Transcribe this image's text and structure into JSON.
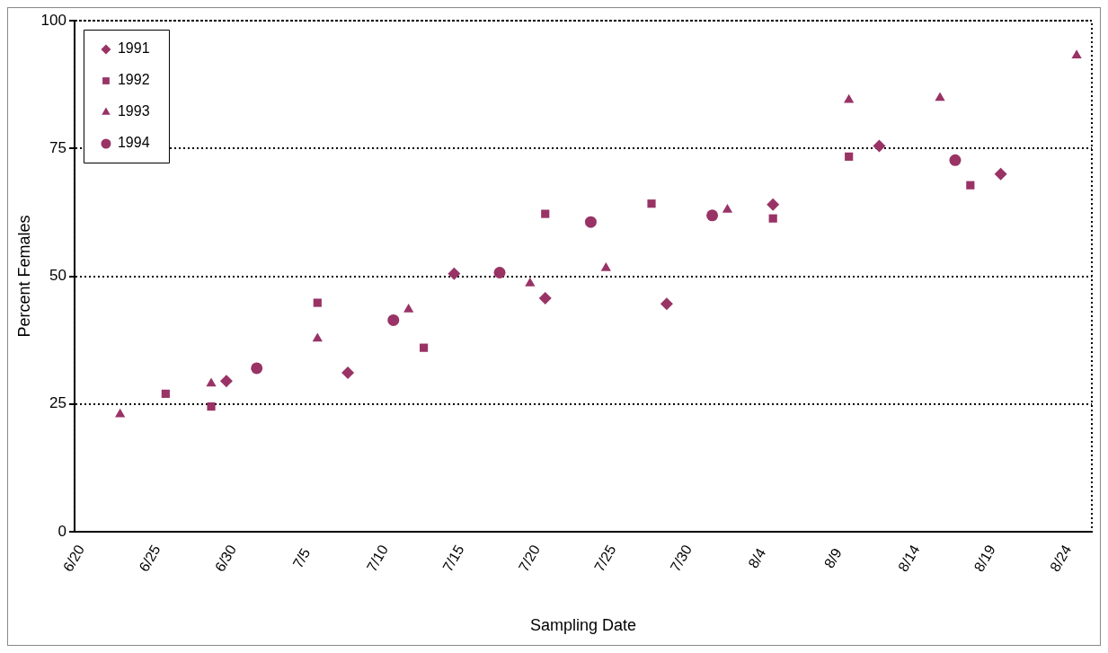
{
  "chart_data": {
    "type": "scatter",
    "xlabel": "Sampling Date",
    "ylabel": "Percent Females",
    "xlim": [
      "--06-20",
      "--08-26"
    ],
    "xticks": [
      {
        "value": "--06-20",
        "label": "6/20"
      },
      {
        "value": "--06-25",
        "label": "6/25"
      },
      {
        "value": "--06-30",
        "label": "6/30"
      },
      {
        "value": "--07-05",
        "label": "7/5"
      },
      {
        "value": "--07-10",
        "label": "7/10"
      },
      {
        "value": "--07-15",
        "label": "7/15"
      },
      {
        "value": "--07-20",
        "label": "7/20"
      },
      {
        "value": "--07-25",
        "label": "7/25"
      },
      {
        "value": "--07-30",
        "label": "7/30"
      },
      {
        "value": "--08-04",
        "label": "8/4"
      },
      {
        "value": "--08-09",
        "label": "8/9"
      },
      {
        "value": "--08-14",
        "label": "8/14"
      },
      {
        "value": "--08-19",
        "label": "8/19"
      },
      {
        "value": "--08-24",
        "label": "8/24"
      }
    ],
    "ylim": [
      0,
      100
    ],
    "yticks": [
      0,
      25,
      50,
      75,
      100
    ],
    "grid": "y",
    "legend": "top left",
    "series": [
      {
        "name": "1991",
        "color": "#993366",
        "marker": "diamond",
        "x": [
          "--06-30",
          "--07-08",
          "--07-15",
          "--07-21",
          "--07-29",
          "--08-05",
          "--08-12",
          "--08-20"
        ],
        "values": [
          29.5,
          31.1,
          50.5,
          45.7,
          44.6,
          64.0,
          75.5,
          70.0
        ]
      },
      {
        "name": "1992",
        "color": "#993366",
        "marker": "square",
        "x": [
          "--06-26",
          "--06-29",
          "--07-06",
          "--07-13",
          "--07-21",
          "--07-28",
          "--08-05",
          "--08-10",
          "--08-18"
        ],
        "values": [
          27.0,
          24.5,
          44.8,
          36.0,
          62.2,
          64.2,
          61.3,
          73.4,
          67.8
        ]
      },
      {
        "name": "1993",
        "color": "#993366",
        "marker": "triangle",
        "x": [
          "--06-23",
          "--06-29",
          "--07-06",
          "--07-12",
          "--07-20",
          "--07-25",
          "--08-02",
          "--08-10",
          "--08-16",
          "--08-25"
        ],
        "values": [
          23.0,
          29.0,
          37.8,
          43.5,
          48.6,
          51.6,
          63.0,
          84.5,
          84.9,
          93.2
        ]
      },
      {
        "name": "1994",
        "color": "#993366",
        "marker": "circle",
        "x": [
          "--07-02",
          "--07-11",
          "--07-18",
          "--07-24",
          "--08-01",
          "--08-17"
        ],
        "values": [
          32.0,
          41.4,
          50.7,
          60.6,
          61.9,
          72.7
        ]
      }
    ]
  }
}
